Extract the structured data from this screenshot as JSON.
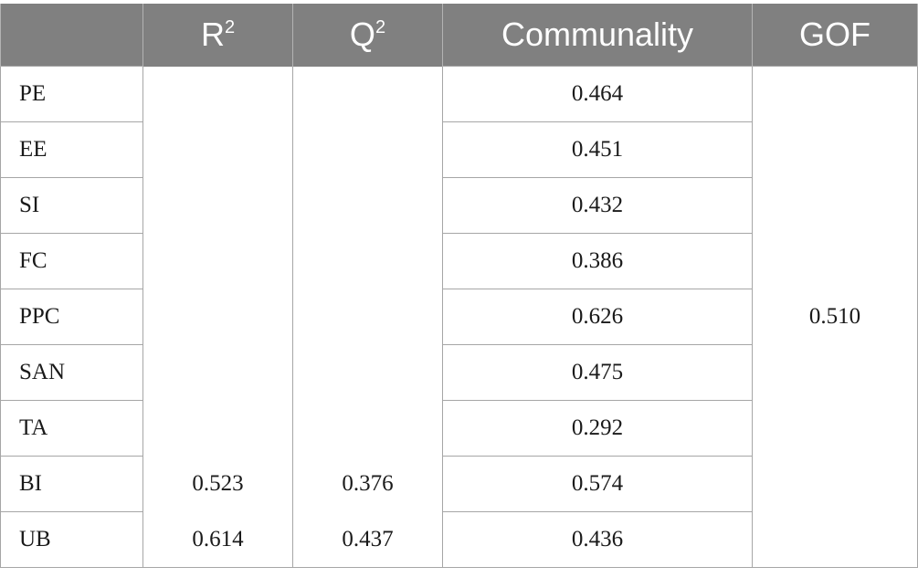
{
  "table": {
    "headers": [
      {
        "text": "",
        "sup": ""
      },
      {
        "text": "R",
        "sup": "2"
      },
      {
        "text": "Q",
        "sup": "2"
      },
      {
        "text": "Communality",
        "sup": ""
      },
      {
        "text": "GOF",
        "sup": ""
      }
    ],
    "rows": [
      {
        "label": "PE",
        "r2": "",
        "q2": "",
        "communality": "0.464"
      },
      {
        "label": "EE",
        "r2": "",
        "q2": "",
        "communality": "0.451"
      },
      {
        "label": "SI",
        "r2": "",
        "q2": "",
        "communality": "0.432"
      },
      {
        "label": "FC",
        "r2": "",
        "q2": "",
        "communality": "0.386"
      },
      {
        "label": "PPC",
        "r2": "",
        "q2": "",
        "communality": "0.626"
      },
      {
        "label": "SAN",
        "r2": "",
        "q2": "",
        "communality": "0.475"
      },
      {
        "label": "TA",
        "r2": "",
        "q2": "",
        "communality": "0.292"
      },
      {
        "label": "BI",
        "r2": "0.523",
        "q2": "0.376",
        "communality": "0.574"
      },
      {
        "label": "UB",
        "r2": "0.614",
        "q2": "0.437",
        "communality": "0.436"
      }
    ],
    "gof": "0.510"
  },
  "colors": {
    "header_bg": "#808080",
    "header_text": "#ffffff",
    "border": "#a6a6a6"
  }
}
